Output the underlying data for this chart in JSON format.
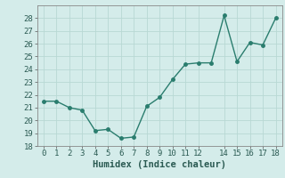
{
  "x": [
    0,
    1,
    2,
    3,
    4,
    5,
    6,
    7,
    8,
    9,
    10,
    11,
    12,
    13,
    14,
    15,
    16,
    17,
    18
  ],
  "y": [
    21.5,
    21.5,
    21.0,
    20.8,
    19.2,
    19.3,
    18.6,
    18.7,
    21.1,
    21.8,
    23.2,
    24.4,
    24.5,
    24.5,
    28.2,
    24.6,
    26.1,
    25.9,
    28.0
  ],
  "line_color": "#2a7d6e",
  "marker": "o",
  "marker_size": 2.5,
  "bg_color": "#d4ecea",
  "grid_color": "#b8d8d4",
  "xlabel": "Humidex (Indice chaleur)",
  "xlim": [
    -0.5,
    18.5
  ],
  "ylim": [
    18,
    29
  ],
  "yticks": [
    18,
    19,
    20,
    21,
    22,
    23,
    24,
    25,
    26,
    27,
    28
  ],
  "xticks": [
    0,
    1,
    2,
    3,
    4,
    5,
    6,
    7,
    8,
    9,
    10,
    11,
    12,
    14,
    15,
    16,
    17,
    18
  ],
  "tick_fontsize": 6.5,
  "xlabel_fontsize": 7.5,
  "line_width": 1.0
}
